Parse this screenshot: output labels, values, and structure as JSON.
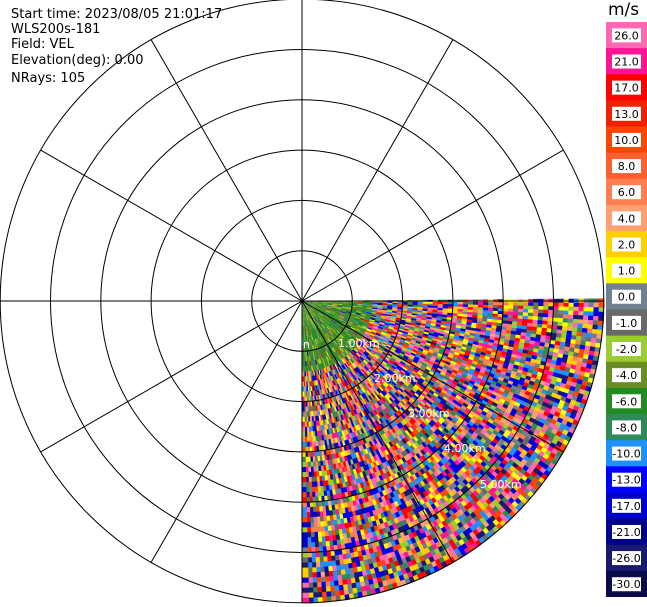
{
  "header": {
    "start_time": "Start time: 2023/08/05 21:01:17",
    "instrument": "WLS200s-181",
    "field": "Field: VEL",
    "elevation": "Elevation(deg): 0.00",
    "nrays": "NRays: 105"
  },
  "chart_data": {
    "type": "heatmap",
    "projection": "polar (PPI scan)",
    "field": "VEL",
    "units": "m/s",
    "azimuth_range_deg": [
      90,
      180
    ],
    "n_rays": 105,
    "range_ring_labels": [
      "1.00km",
      "2.00km",
      "3.00km",
      "4.00km",
      "5.00km"
    ],
    "range_rings_km": [
      1,
      2,
      3,
      4,
      5,
      6
    ],
    "origin_label": "n",
    "spoke_interval_deg": 30,
    "max_range_km": 6,
    "near_range_km": 1.4,
    "colorbar": {
      "label": "m/s",
      "tick_labels": [
        "26.0",
        "21.0",
        "17.0",
        "13.0",
        "10.0",
        "8.0",
        "6.0",
        "4.0",
        "2.0",
        "1.0",
        "0.0",
        "-1.0",
        "-2.0",
        "-4.0",
        "-6.0",
        "-8.0",
        "-10.0",
        "-13.0",
        "-17.0",
        "-21.0",
        "-26.0",
        "-30.0"
      ],
      "colors": [
        "#ff69b4",
        "#ff1493",
        "#ff0000",
        "#ee2200",
        "#ff4500",
        "#ff6030",
        "#ff7f50",
        "#ffa070",
        "#ffd000",
        "#ffff00",
        "#708090",
        "#696969",
        "#9acd32",
        "#6b8e23",
        "#228b22",
        "#2e8b57",
        "#1e90ff",
        "#0000ff",
        "#0000cd",
        "#00008b",
        "#191970",
        "#0b0b4a"
      ]
    }
  }
}
